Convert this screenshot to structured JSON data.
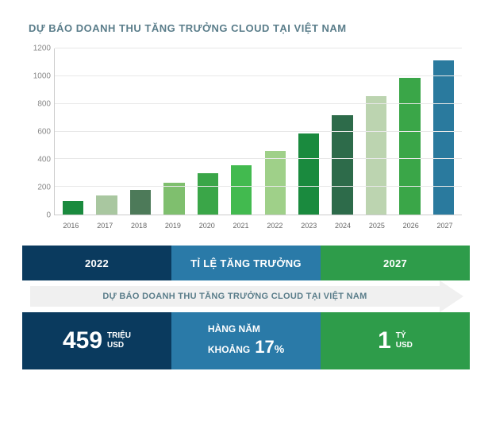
{
  "chart": {
    "title": "DỰ BÁO DOANH THU TĂNG TRƯỞNG CLOUD TẠI VIỆT NAM",
    "type": "bar",
    "ylim": [
      0,
      1200
    ],
    "ytick_step": 200,
    "yticks": [
      0,
      200,
      400,
      600,
      800,
      1000,
      1200
    ],
    "categories": [
      "2016",
      "2017",
      "2018",
      "2019",
      "2020",
      "2021",
      "2022",
      "2023",
      "2024",
      "2025",
      "2026",
      "2027"
    ],
    "values": [
      100,
      140,
      180,
      230,
      300,
      355,
      459,
      585,
      720,
      855,
      985,
      1115
    ],
    "bar_colors": [
      "#1a8a3e",
      "#a9c7a0",
      "#4d7a59",
      "#7fbf6e",
      "#3aa648",
      "#42ba4f",
      "#9fd089",
      "#1a8a3e",
      "#2d6b4a",
      "#bcd4b0",
      "#3aa648",
      "#2a7a9e"
    ],
    "grid_color": "#e8e8e8",
    "axis_color": "#cccccc",
    "title_color": "#5a7d8a",
    "title_fontsize": 13,
    "tick_fontsize": 10,
    "tick_color": "#888888",
    "xtick_color": "#666666",
    "background_color": "#ffffff"
  },
  "info": {
    "header_cells": [
      {
        "label": "2022",
        "bg": "#0a3a5e"
      },
      {
        "label": "TỈ LỆ TĂNG TRƯỞNG",
        "bg": "#2a7aa8"
      },
      {
        "label": "2027",
        "bg": "#2e9c4a"
      }
    ],
    "arrow_text": "DỰ BÁO DOANH THU TĂNG TRƯỞNG CLOUD TẠI VIỆT NAM",
    "arrow_bg": "#f0f0f0",
    "arrow_text_color": "#5a7d8a",
    "stat_cells": [
      {
        "big": "459",
        "unit1": "TRIỆU",
        "unit2": "USD",
        "bg": "#0a3a5e"
      },
      {
        "line1": "HÀNG NĂM",
        "line2_text": "KHOẢNG",
        "line2_num": "17",
        "suffix": "%",
        "bg": "#2a7aa8"
      },
      {
        "big": "1",
        "unit1": "TỶ",
        "unit2": "USD",
        "bg": "#2e9c4a"
      }
    ]
  }
}
